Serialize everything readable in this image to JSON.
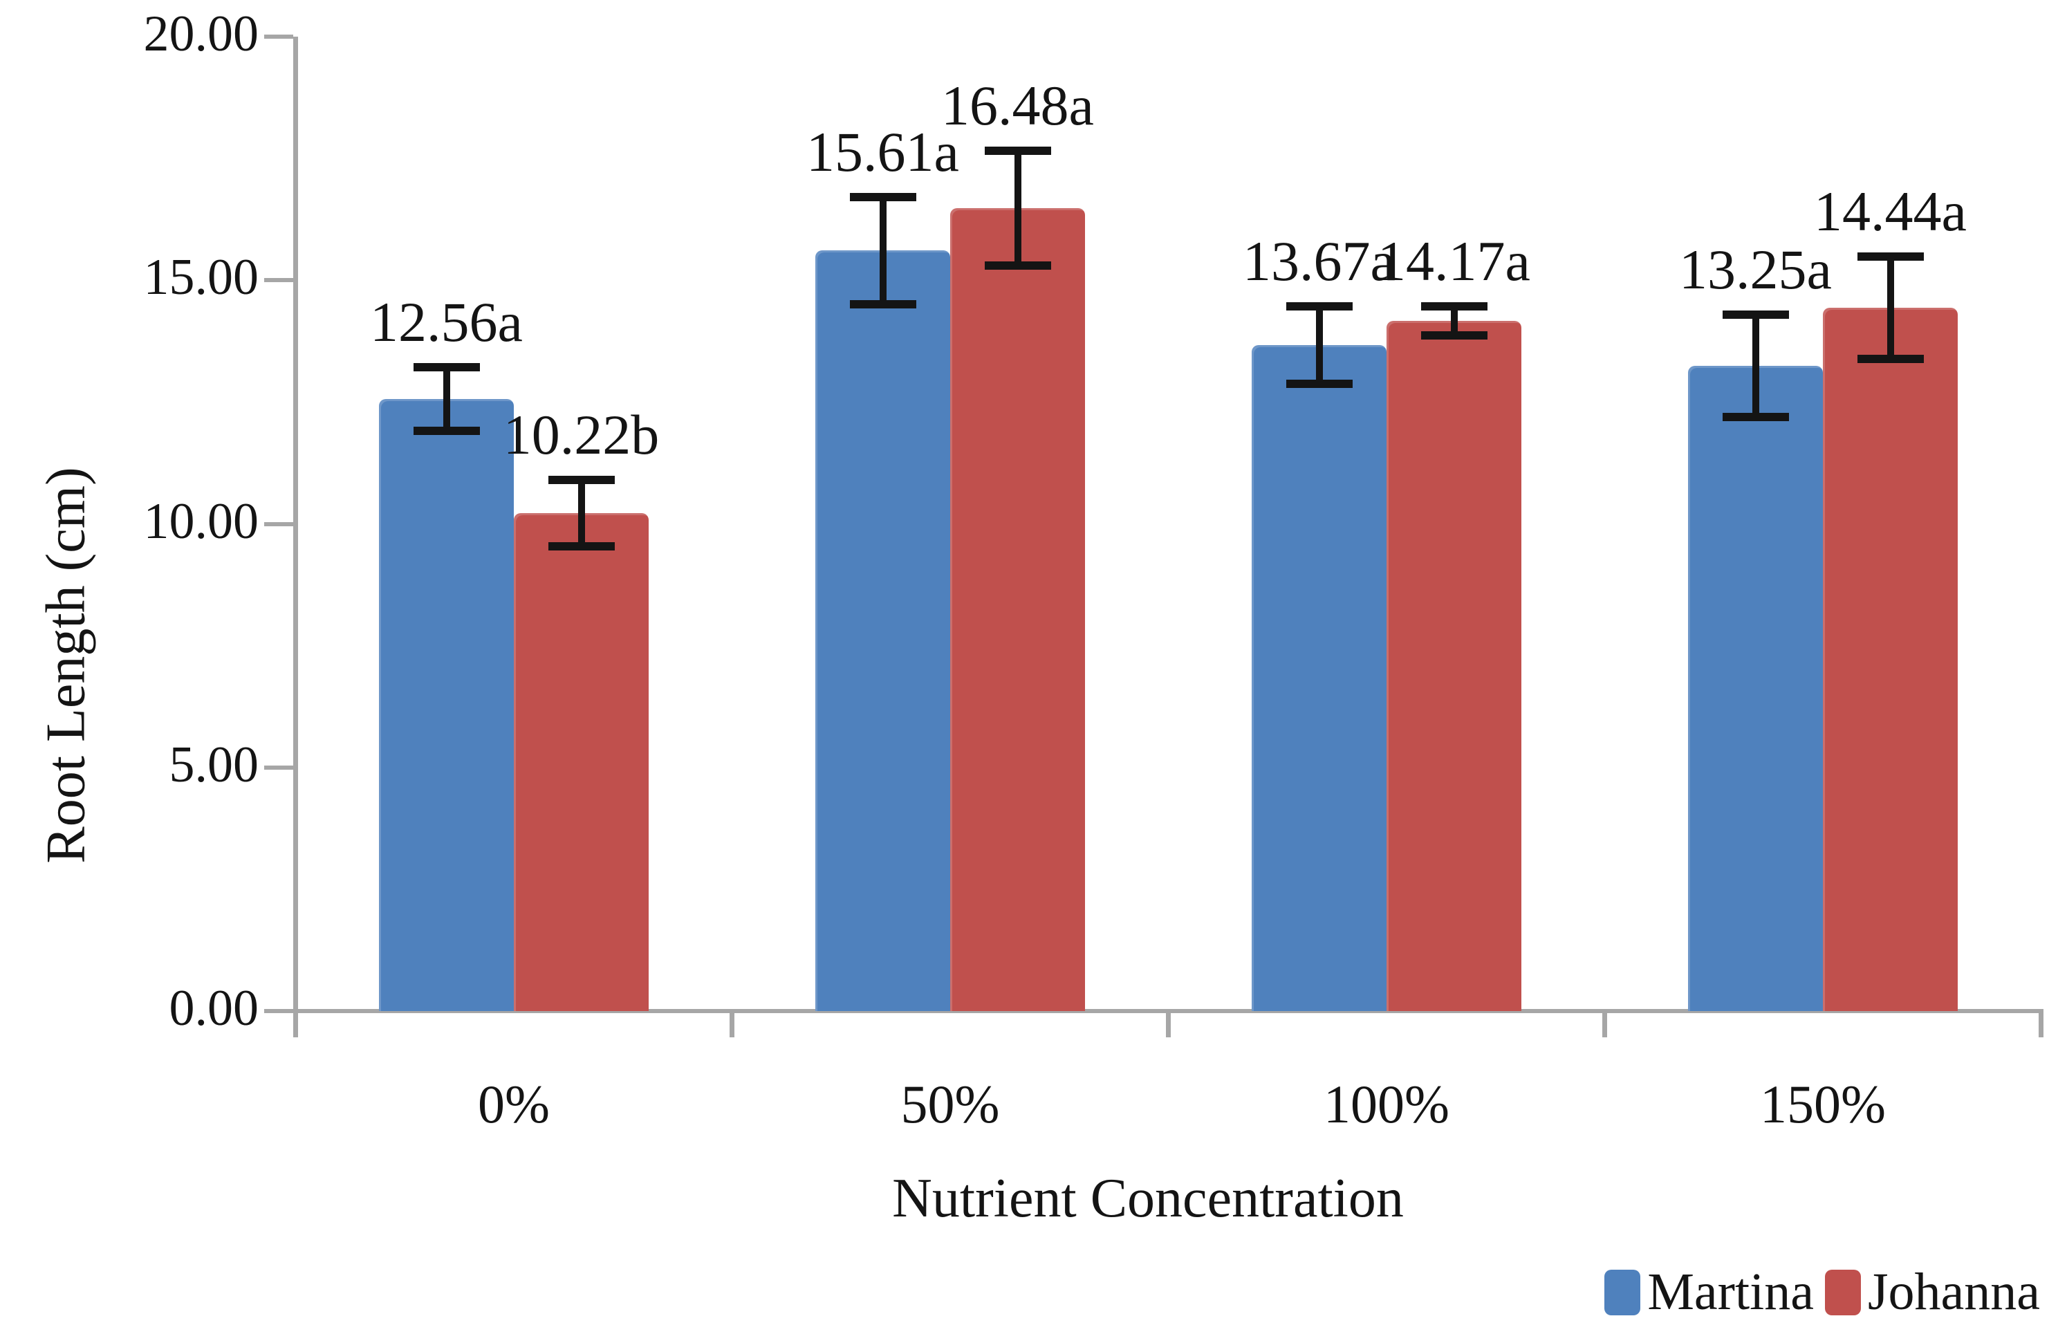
{
  "figure": {
    "background": "#ffffff",
    "axis_color": "#a6a6a6",
    "text_color": "#141414",
    "error_bar_color": "#141414"
  },
  "y_axis": {
    "title": "Root Length (cm)",
    "tick_labels": [
      "20.00",
      "15.00",
      "10.00",
      "5.00",
      "0.00"
    ],
    "tick_values": [
      20,
      15,
      10,
      5,
      0
    ],
    "min": 0,
    "max": 20
  },
  "x_axis": {
    "title": "Nutrient Concentration"
  },
  "legend": {
    "position": "bottom-right",
    "entries": [
      {
        "label": "Martina",
        "color": "#4f81bd"
      },
      {
        "label": "Johanna",
        "color": "#c0504d"
      }
    ]
  },
  "chart_data": {
    "type": "bar",
    "title": "",
    "xlabel": "Nutrient Concentration",
    "ylabel": "Root Length (cm)",
    "ylim": [
      0,
      20
    ],
    "ytick_step": 5,
    "grid": false,
    "legend_position": "bottom-right",
    "categories": [
      "0%",
      "50%",
      "100%",
      "150%"
    ],
    "series": [
      {
        "name": "Martina",
        "color": "#4f81bd",
        "values": [
          12.56,
          15.61,
          13.67,
          13.25
        ],
        "errors": [
          0.65,
          1.1,
          0.8,
          1.05
        ],
        "data_labels": [
          "12.56a",
          "15.61a",
          "13.67a",
          "13.25a"
        ]
      },
      {
        "name": "Johanna",
        "color": "#c0504d",
        "values": [
          10.22,
          16.48,
          14.17,
          14.44
        ],
        "errors": [
          0.68,
          1.18,
          0.3,
          1.05
        ],
        "data_labels": [
          "10.22b",
          "16.48a",
          "14.17a",
          "14.44a"
        ]
      }
    ]
  }
}
